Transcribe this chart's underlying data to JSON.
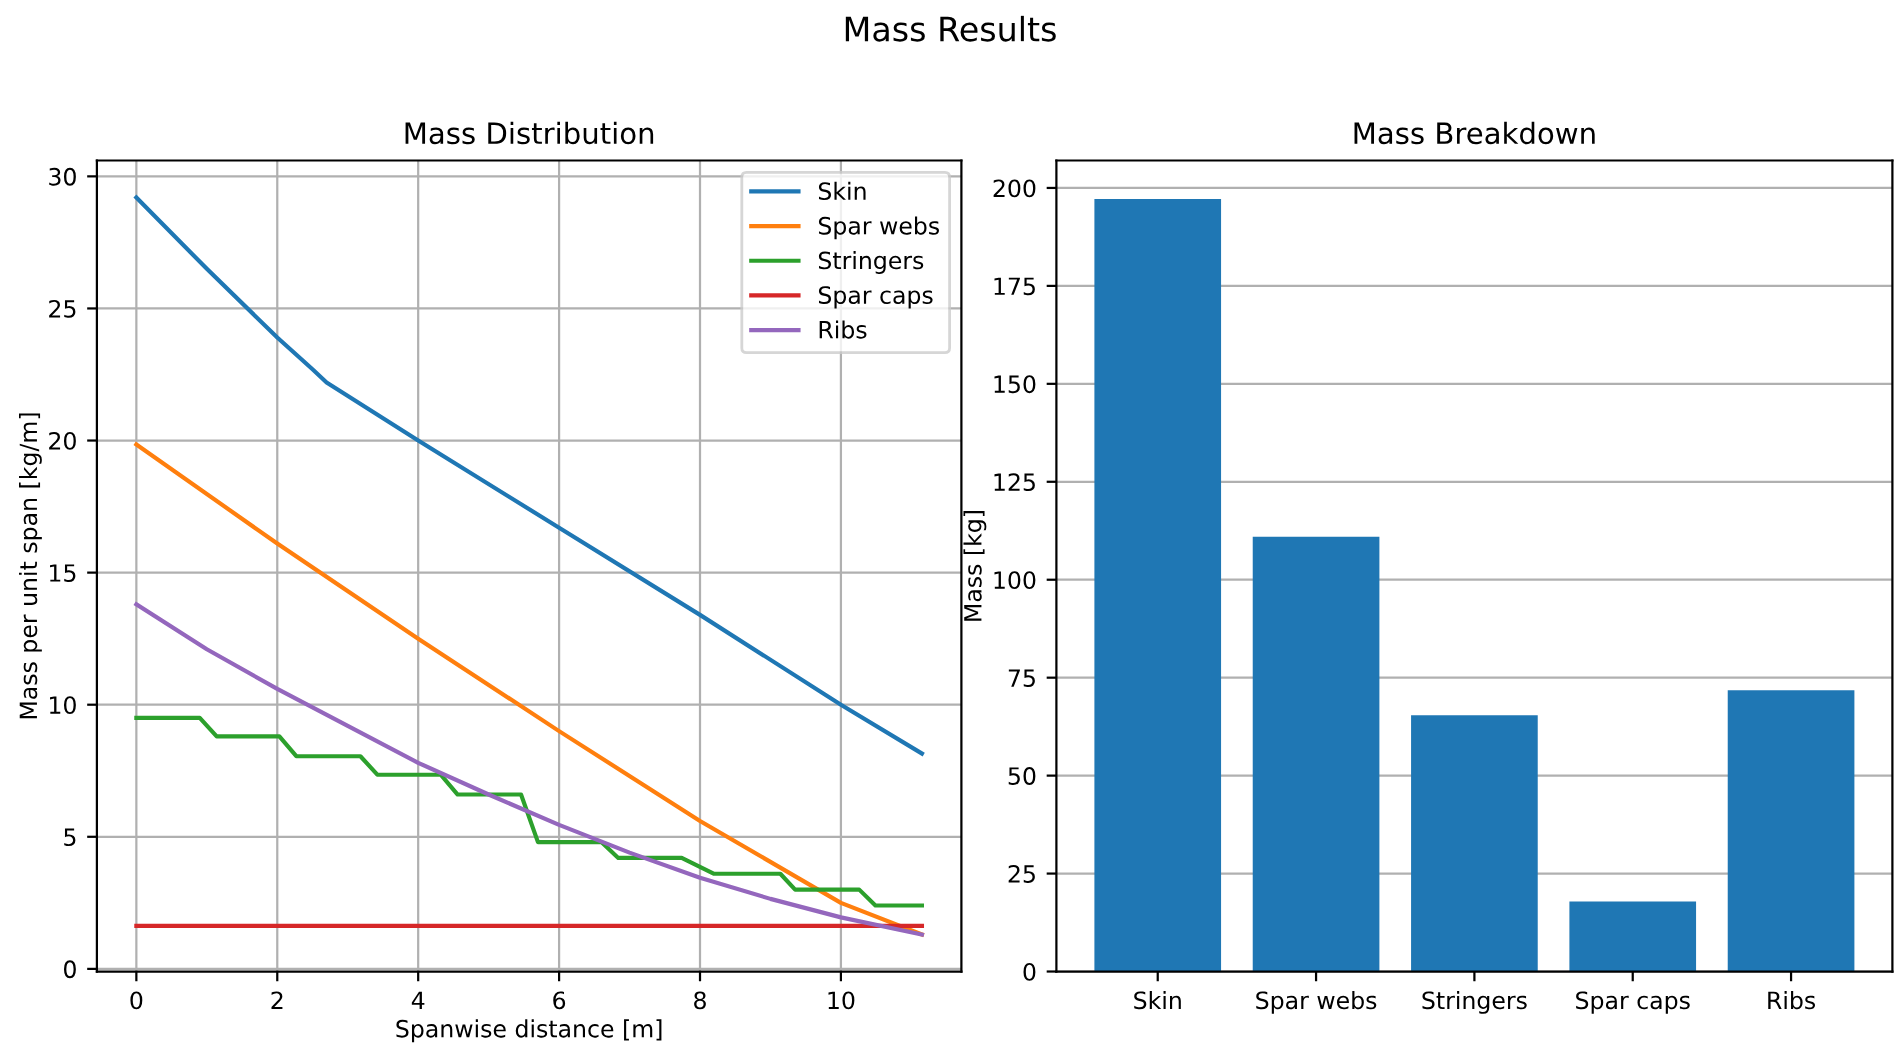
{
  "chart_data": [
    {
      "type": "line",
      "title": "Mass Distribution",
      "xlabel": "Spanwise distance [m]",
      "ylabel": "Mass per unit span [kg/m]",
      "annotations": [
        "Mass Results"
      ],
      "xlim": [
        -0.56,
        11.71
      ],
      "ylim": [
        -0.1,
        30.6
      ],
      "xticks": [
        0,
        2,
        4,
        6,
        8,
        10
      ],
      "yticks": [
        0,
        5,
        10,
        15,
        20,
        25,
        30
      ],
      "grid": true,
      "legend": "top right",
      "line_style": "solid",
      "series": [
        {
          "name": "Skin",
          "color": "#1f77b4",
          "x": [
            0,
            1,
            2,
            2.5,
            2.7,
            4,
            6,
            8,
            10,
            11.15
          ],
          "values": [
            29.2,
            26.5,
            23.9,
            22.7,
            22.2,
            20.0,
            16.7,
            13.4,
            10.0,
            8.15
          ]
        },
        {
          "name": "Spar webs",
          "color": "#ff7f0e",
          "x": [
            0,
            2,
            4,
            6,
            8,
            10,
            11.15
          ],
          "values": [
            19.85,
            16.1,
            12.5,
            9.0,
            5.6,
            2.5,
            1.3
          ]
        },
        {
          "name": "Stringers",
          "color": "#2ca02c",
          "x": [
            0,
            0.9,
            1.14,
            2.03,
            2.27,
            3.18,
            3.42,
            4.32,
            4.56,
            5.46,
            5.7,
            6.6,
            6.84,
            7.74,
            8.2,
            9.14,
            9.35,
            10.26,
            10.49,
            11.15
          ],
          "values": [
            9.5,
            9.5,
            8.8,
            8.8,
            8.05,
            8.05,
            7.35,
            7.35,
            6.6,
            6.6,
            4.8,
            4.8,
            4.2,
            4.2,
            3.6,
            3.6,
            3.0,
            3.0,
            2.4,
            2.4
          ]
        },
        {
          "name": "Spar caps",
          "color": "#d62728",
          "x": [
            0,
            11.15
          ],
          "values": [
            1.63,
            1.63
          ]
        },
        {
          "name": "Ribs",
          "color": "#9467bd",
          "x": [
            0,
            1,
            2,
            3,
            4,
            5,
            6,
            7,
            8,
            9,
            10,
            11.15
          ],
          "values": [
            13.8,
            12.1,
            10.6,
            9.2,
            7.8,
            6.6,
            5.45,
            4.4,
            3.45,
            2.65,
            1.95,
            1.3
          ]
        }
      ]
    },
    {
      "type": "bar",
      "title": "Mass Breakdown",
      "ylabel": "Mass [kg]",
      "categories": [
        "Skin",
        "Spar webs",
        "Stringers",
        "Spar caps",
        "Ribs"
      ],
      "values": [
        197.2,
        111.0,
        65.4,
        17.9,
        71.8
      ],
      "color": "#1f77b4",
      "ylim": [
        0,
        207
      ],
      "yticks": [
        0,
        25,
        50,
        75,
        100,
        125,
        150,
        175,
        200
      ],
      "grid": "y"
    }
  ]
}
